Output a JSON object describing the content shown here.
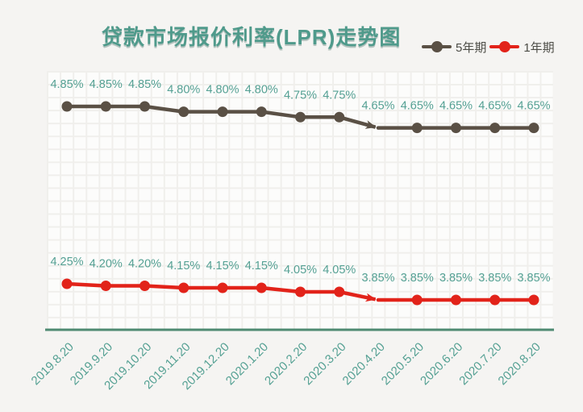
{
  "title": "贷款市场报价利率(LPR)走势图",
  "legend": {
    "position": "top-right",
    "items": [
      {
        "label": "5年期",
        "color": "#5a5045"
      },
      {
        "label": "1年期",
        "color": "#e2231a"
      }
    ]
  },
  "colors": {
    "background": "#f5f4f2",
    "title": "#4f9a8b",
    "data_label": "#54a093",
    "x_label": "#54a093",
    "axis_line": "#4e8a72",
    "series_5y": "#5a5045",
    "series_1y": "#e2231a",
    "grid_line": "#f0efec",
    "grid_fill": "#fcfcfb",
    "legend_text": "#4c4c46"
  },
  "chart_data": {
    "type": "line",
    "title": "贷款市场报价利率(LPR)走势图",
    "categories": [
      "2019.8.20",
      "2019.9.20",
      "2019.10.20",
      "2019.11.20",
      "2019.12.20",
      "2020.1.20",
      "2020.2.20",
      "2020.3.20",
      "2020.4.20",
      "2020.5.20",
      "2020.6.20",
      "2020.7.20",
      "2020.8.20"
    ],
    "series": [
      {
        "name": "5年期",
        "color": "#5a5045",
        "values": [
          4.85,
          4.85,
          4.85,
          4.8,
          4.8,
          4.8,
          4.75,
          4.75,
          4.65,
          4.65,
          4.65,
          4.65,
          4.65
        ],
        "data_labels": [
          "4.85%",
          "4.85%",
          "4.85%",
          "4.80%",
          "4.80%",
          "4.80%",
          "4.75%",
          "4.75%",
          "4.65%",
          "4.65%",
          "4.65%",
          "4.65%",
          "4.65%"
        ]
      },
      {
        "name": "1年期",
        "color": "#e2231a",
        "values": [
          4.25,
          4.2,
          4.2,
          4.15,
          4.15,
          4.15,
          4.05,
          4.05,
          3.85,
          3.85,
          3.85,
          3.85,
          3.85
        ],
        "data_labels": [
          "4.25%",
          "4.20%",
          "4.20%",
          "4.15%",
          "4.15%",
          "4.15%",
          "4.05%",
          "4.05%",
          "3.85%",
          "3.85%",
          "3.85%",
          "3.85%",
          "3.85%"
        ]
      }
    ],
    "annotations": [
      {
        "type": "arrow",
        "series": "5年期",
        "from_category": "2020.3.20",
        "to_category": "2020.4.20"
      },
      {
        "type": "arrow",
        "series": "1年期",
        "from_category": "2020.3.20",
        "to_category": "2020.4.20"
      }
    ],
    "x_label_rotation": -45,
    "y_axis_labels_shown": false,
    "grid": "light graph-paper squares",
    "legend_position": "top-right"
  }
}
